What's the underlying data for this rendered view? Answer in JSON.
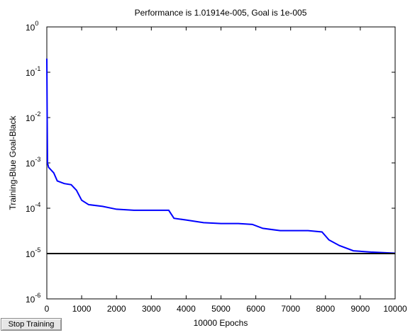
{
  "chart_data": {
    "type": "line",
    "title": "Performance is 1.01914e-005, Goal is 1e-005",
    "xlabel": "10000 Epochs",
    "ylabel": "Training-Blue  Goal-Black",
    "yscale": "log",
    "xlim": [
      0,
      10000
    ],
    "xticks": [
      0,
      1000,
      2000,
      3000,
      4000,
      5000,
      6000,
      7000,
      8000,
      9000,
      10000
    ],
    "ylim": [
      1e-06,
      1
    ],
    "yticks": [
      {
        "value": 1e-06,
        "label": "10",
        "exponent": "-6"
      },
      {
        "value": 1e-05,
        "label": "10",
        "exponent": "-5"
      },
      {
        "value": 0.0001,
        "label": "10",
        "exponent": "-4"
      },
      {
        "value": 0.001,
        "label": "10",
        "exponent": "-3"
      },
      {
        "value": 0.01,
        "label": "10",
        "exponent": "-2"
      },
      {
        "value": 0.1,
        "label": "10",
        "exponent": "-1"
      },
      {
        "value": 1,
        "label": "10",
        "exponent": "0"
      }
    ],
    "series": [
      {
        "name": "Training",
        "color": "#0000ff",
        "x": [
          0,
          10,
          20,
          50,
          200,
          300,
          500,
          700,
          850,
          1000,
          1200,
          1600,
          2000,
          2500,
          3500,
          3650,
          4000,
          4500,
          5000,
          5500,
          5900,
          6200,
          6700,
          7500,
          7900,
          8100,
          8400,
          8800,
          9300,
          10000
        ],
        "values": [
          0.2,
          0.01,
          0.001,
          0.0008,
          0.0006,
          0.0004,
          0.00035,
          0.00033,
          0.00025,
          0.00015,
          0.00012,
          0.00011,
          9.5e-05,
          9e-05,
          9e-05,
          6e-05,
          5.5e-05,
          4.8e-05,
          4.6e-05,
          4.6e-05,
          4.4e-05,
          3.6e-05,
          3.2e-05,
          3.2e-05,
          3e-05,
          2e-05,
          1.5e-05,
          1.15e-05,
          1.08e-05,
          1.01914e-05
        ]
      },
      {
        "name": "Goal",
        "color": "#000000",
        "x": [
          0,
          10000
        ],
        "values": [
          1e-05,
          1e-05
        ]
      }
    ],
    "button": "Stop Training"
  }
}
